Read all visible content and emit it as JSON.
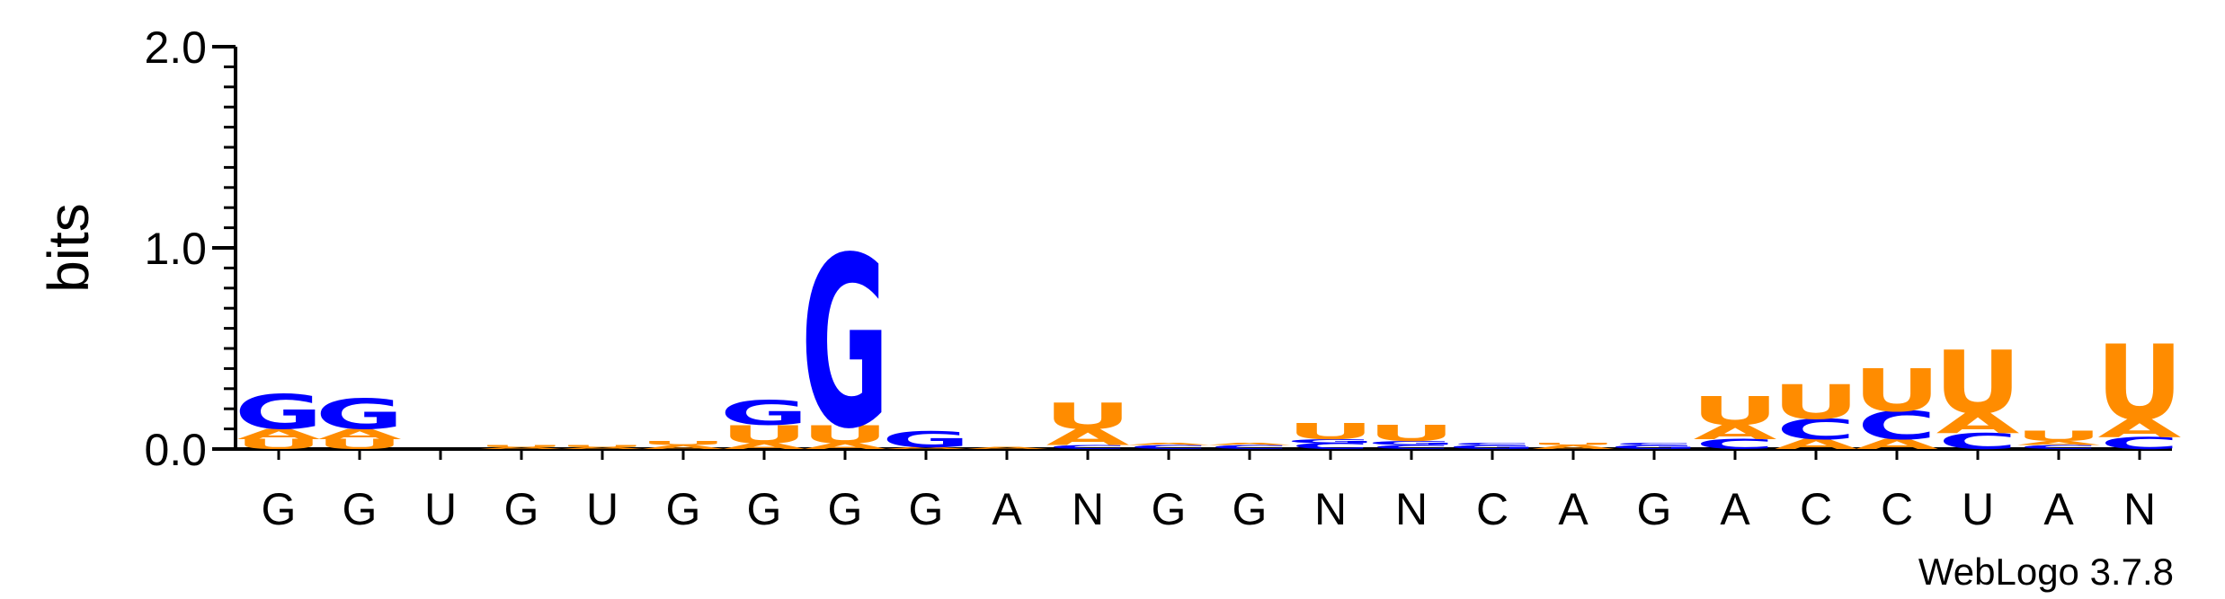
{
  "chart_data": {
    "type": "sequence-logo",
    "ylabel": "bits",
    "ylim": [
      0,
      2.0
    ],
    "yticks": [
      "0.0",
      "1.0",
      "2.0"
    ],
    "positions": [
      "G",
      "G",
      "U",
      "G",
      "U",
      "G",
      "G",
      "G",
      "G",
      "A",
      "N",
      "G",
      "G",
      "N",
      "N",
      "C",
      "A",
      "G",
      "A",
      "C",
      "C",
      "U",
      "A",
      "N"
    ],
    "colors": {
      "G": "#0000ff",
      "C": "#0000ff",
      "A": "#ff8c00",
      "U": "#ff8c00"
    },
    "stacks": [
      [
        [
          "U",
          0.05
        ],
        [
          "A",
          0.05
        ],
        [
          "G",
          0.17
        ]
      ],
      [
        [
          "U",
          0.05
        ],
        [
          "A",
          0.05
        ],
        [
          "G",
          0.15
        ]
      ],
      [],
      [
        [
          "A",
          0.01
        ],
        [
          "U",
          0.01
        ]
      ],
      [
        [
          "A",
          0.01
        ],
        [
          "U",
          0.01
        ]
      ],
      [
        [
          "A",
          0.02
        ],
        [
          "U",
          0.02
        ]
      ],
      [
        [
          "A",
          0.03
        ],
        [
          "U",
          0.09
        ],
        [
          "G",
          0.12
        ]
      ],
      [
        [
          "A",
          0.03
        ],
        [
          "U",
          0.09
        ],
        [
          "G",
          0.84
        ]
      ],
      [
        [
          "A",
          0.01
        ],
        [
          "G",
          0.08
        ]
      ],
      [
        [
          "A",
          0.01
        ]
      ],
      [
        [
          "C",
          0.02
        ],
        [
          "A",
          0.08
        ],
        [
          "U",
          0.13
        ]
      ],
      [
        [
          "C",
          0.02
        ],
        [
          "A",
          0.01
        ]
      ],
      [
        [
          "C",
          0.02
        ],
        [
          "A",
          0.01
        ]
      ],
      [
        [
          "C",
          0.03
        ],
        [
          "G",
          0.02
        ],
        [
          "U",
          0.08
        ]
      ],
      [
        [
          "C",
          0.02
        ],
        [
          "G",
          0.02
        ],
        [
          "U",
          0.08
        ]
      ],
      [
        [
          "G",
          0.02
        ],
        [
          "C",
          0.01
        ]
      ],
      [
        [
          "A",
          0.02
        ],
        [
          "U",
          0.01
        ]
      ],
      [
        [
          "G",
          0.02
        ],
        [
          "C",
          0.01
        ]
      ],
      [
        [
          "C",
          0.05
        ],
        [
          "A",
          0.07
        ],
        [
          "U",
          0.14
        ]
      ],
      [
        [
          "A",
          0.05
        ],
        [
          "C",
          0.1
        ],
        [
          "U",
          0.17
        ]
      ],
      [
        [
          "A",
          0.05
        ],
        [
          "C",
          0.14
        ],
        [
          "U",
          0.21
        ]
      ],
      [
        [
          "C",
          0.08
        ],
        [
          "A",
          0.1
        ],
        [
          "U",
          0.31
        ]
      ],
      [
        [
          "C",
          0.02
        ],
        [
          "A",
          0.02
        ],
        [
          "U",
          0.05
        ]
      ],
      [
        [
          "C",
          0.06
        ],
        [
          "A",
          0.09
        ],
        [
          "U",
          0.37
        ]
      ]
    ]
  },
  "credit": "WebLogo 3.7.8"
}
